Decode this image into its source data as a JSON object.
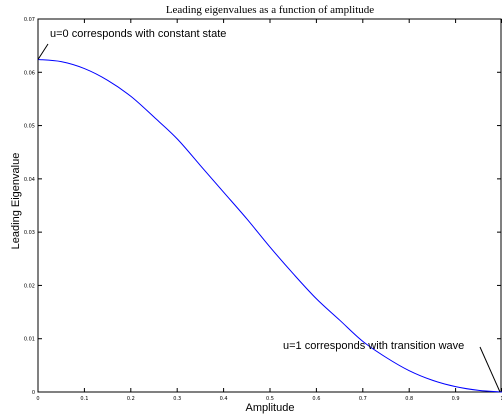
{
  "chart_data": {
    "type": "line",
    "title": "Leading eigenvalues as a function of amplitude",
    "xlabel": "Amplitude",
    "ylabel": "Leading Eigenvalue",
    "xlim": [
      0,
      1
    ],
    "ylim": [
      0,
      0.07
    ],
    "grid": false,
    "x_ticks": [
      "0",
      "0.1",
      "0.2",
      "0.3",
      "0.4",
      "0.5",
      "0.6",
      "0.7",
      "0.8",
      "0.9",
      "1"
    ],
    "y_ticks": [
      "0",
      "0.01",
      "0.02",
      "0.03",
      "0.04",
      "0.05",
      "0.06",
      "0.07"
    ],
    "series": [
      {
        "color": "#0000ff",
        "x": [
          0,
          0.05,
          0.1,
          0.15,
          0.2,
          0.25,
          0.3,
          0.35,
          0.4,
          0.45,
          0.5,
          0.55,
          0.6,
          0.65,
          0.7,
          0.75,
          0.8,
          0.85,
          0.9,
          0.95,
          1.0
        ],
        "y": [
          0.0624,
          0.062,
          0.0607,
          0.0585,
          0.0555,
          0.0516,
          0.0475,
          0.0425,
          0.0375,
          0.0325,
          0.0272,
          0.0222,
          0.0175,
          0.0135,
          0.0095,
          0.0065,
          0.004,
          0.0022,
          0.001,
          0.0003,
          0.0
        ]
      }
    ],
    "annotations": [
      {
        "text": "u=0 corresponds with constant state",
        "x": 0,
        "y": 0.0624
      },
      {
        "text": "u=1 corresponds with transition wave",
        "x": 1,
        "y": 0
      }
    ]
  }
}
